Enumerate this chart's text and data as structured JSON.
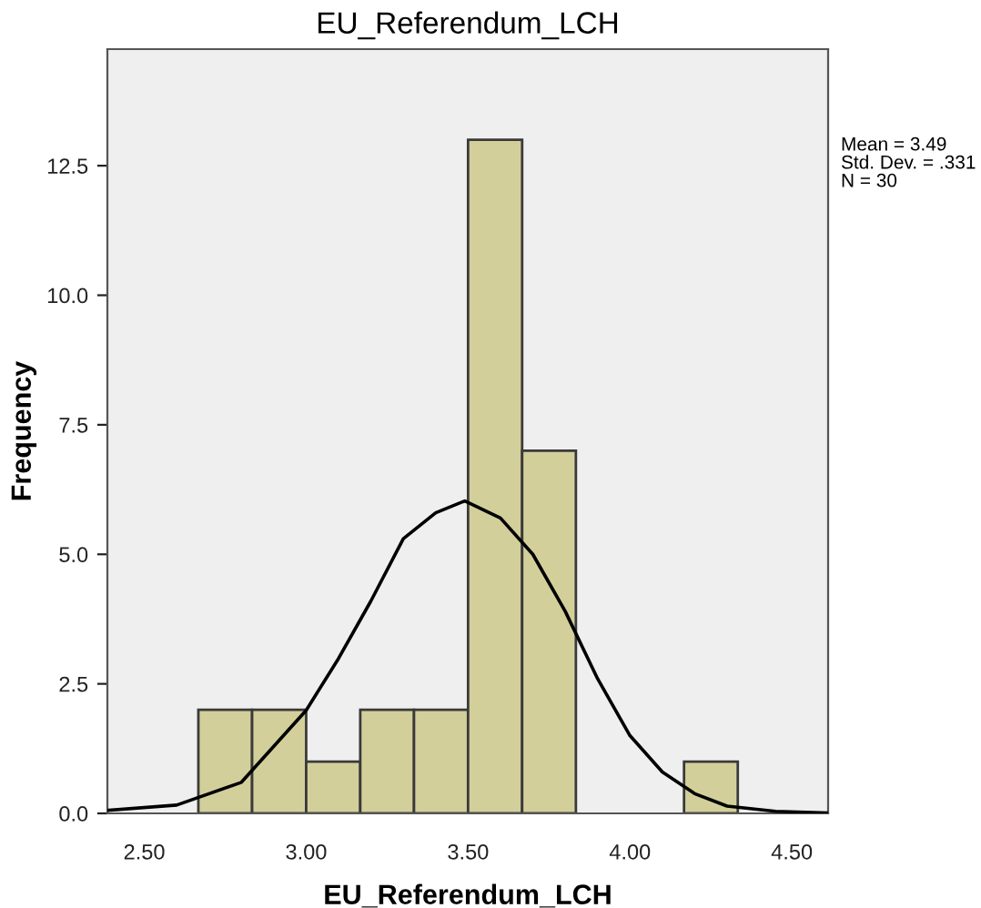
{
  "chart_data": {
    "type": "histogram",
    "title": "EU_Referendum_LCH",
    "xlabel": "EU_Referendum_LCH",
    "ylabel": "Frequency",
    "bins": [
      2.667,
      2.833,
      3.0,
      3.167,
      3.333,
      3.5,
      3.667,
      3.833,
      4.0,
      4.167,
      4.333
    ],
    "values": [
      2,
      2,
      1,
      2,
      2,
      13,
      7,
      0,
      0,
      1
    ],
    "color": "#d3cf9a",
    "series": [
      {
        "type": "line",
        "color": "#000000",
        "x": [
          2.39,
          2.6,
          2.8,
          3.0,
          3.1,
          3.2,
          3.3,
          3.4,
          3.49,
          3.6,
          3.7,
          3.8,
          3.9,
          4.0,
          4.1,
          4.2,
          4.3,
          4.45,
          4.61
        ],
        "values": [
          0.06,
          0.16,
          0.6,
          1.99,
          2.99,
          4.1,
          5.3,
          5.8,
          6.03,
          5.7,
          5.0,
          3.9,
          2.6,
          1.5,
          0.8,
          0.38,
          0.14,
          0.04,
          0.01
        ]
      }
    ],
    "xlim": [
      2.386,
      4.612
    ],
    "xticks": [
      {
        "value": 2.5,
        "label": "2.50"
      },
      {
        "value": 3.0,
        "label": "3.00"
      },
      {
        "value": 3.5,
        "label": "3.50"
      },
      {
        "value": 4.0,
        "label": "4.00"
      },
      {
        "value": 4.5,
        "label": "4.50"
      }
    ],
    "ylim": [
      0,
      14.75
    ],
    "yticks": [
      {
        "value": 0,
        "label": "0.0"
      },
      2.5,
      {
        "value": 5,
        "label": "5.0"
      },
      7.5,
      {
        "value": 10,
        "label": "10.0"
      },
      12.5
    ],
    "grid": false,
    "legend": false,
    "annotations": [
      "Mean = 3.49",
      "Std. Dev. = .331",
      "N = 30"
    ]
  }
}
